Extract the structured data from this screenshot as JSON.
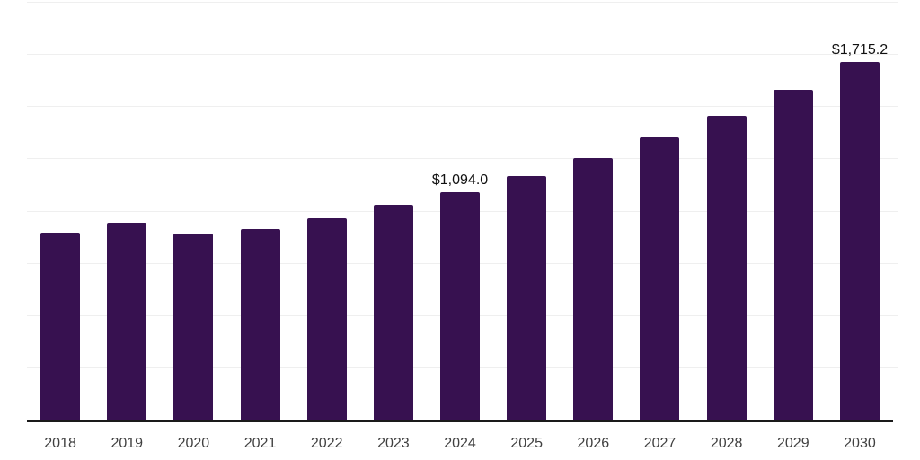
{
  "chart_data": {
    "type": "bar",
    "title": "",
    "xlabel": "",
    "ylabel": "",
    "categories": [
      "2018",
      "2019",
      "2020",
      "2021",
      "2022",
      "2023",
      "2024",
      "2025",
      "2026",
      "2027",
      "2028",
      "2029",
      "2030"
    ],
    "values": [
      900,
      945,
      893,
      915,
      969,
      1032,
      1094.0,
      1168,
      1254,
      1354,
      1457,
      1581,
      1715.2
    ],
    "data_labels": {
      "2024": "$1,094.0",
      "2030": "$1,715.2"
    },
    "ylim": [
      0,
      2000
    ],
    "gridline_interval": 250,
    "grid": true,
    "legend_position": "none",
    "colors": {
      "bar": "#371150",
      "axis_line": "#1a1a1a",
      "gridline": "#efefef",
      "tick_label": "#404040",
      "data_label": "#111111"
    }
  }
}
